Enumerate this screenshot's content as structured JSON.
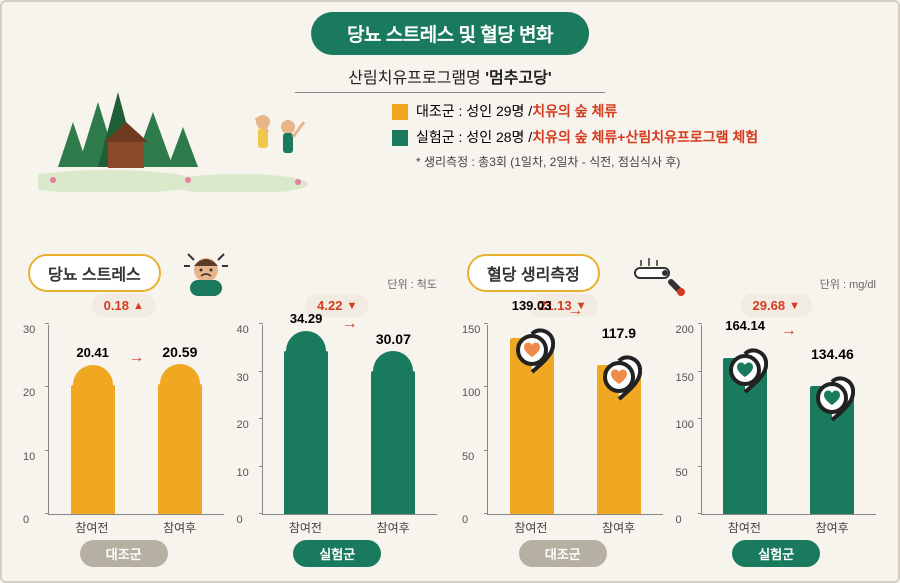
{
  "main_title": "당뇨 스트레스 및 혈당 변화",
  "subtitle_prefix": "산림치유프로그램명 ",
  "subtitle_strong": "'멈추고당'",
  "legend": {
    "control": {
      "color": "#f0a823",
      "label_prefix": "대조군 : 성인 29명 / ",
      "label_highlight": "치유의 숲 체류"
    },
    "experiment": {
      "color": "#1a7a5e",
      "label_prefix": "실험군 : 성인 28명 / ",
      "label_highlight": "치유의 숲 체류+산림치유프로그램 체험"
    },
    "note": "* 생리측정 : 총3회 (1일차, 2일차 - 식전, 점심식사 후)"
  },
  "panels": {
    "stress": {
      "title": "당뇨 스트레스",
      "unit": "단위 : 척도",
      "control": {
        "delta": "0.18",
        "delta_dir": "up",
        "before": 20.41,
        "after": 20.59,
        "ymax": 30,
        "ytick_step": 10,
        "color": "#f0a823",
        "bottom_label": "대조군"
      },
      "experiment": {
        "delta": "4.22",
        "delta_dir": "down",
        "before": 34.29,
        "after": 30.07,
        "ymax": 40,
        "ytick_step": 10,
        "color": "#1a7a5e",
        "bottom_label": "실험군"
      }
    },
    "glucose": {
      "title": "혈당 생리측정",
      "unit": "단위 : mg/dl",
      "control": {
        "delta": "21.13",
        "delta_dir": "down",
        "before": 139.03,
        "after": 117.9,
        "ymax": 150,
        "ytick_step": 50,
        "color": "#f0a823",
        "bottom_label": "대조군"
      },
      "experiment": {
        "delta": "29.68",
        "delta_dir": "down",
        "before": 164.14,
        "after": 134.46,
        "ymax": 200,
        "ytick_step": 50,
        "color": "#1a7a5e",
        "bottom_label": "실험군"
      }
    }
  },
  "x_labels": {
    "before": "참여전",
    "after": "참여후"
  },
  "colors": {
    "accent_red": "#d43c1f",
    "badge_bg": "#f1ebe1",
    "grey_pill": "#b6b0a3"
  }
}
